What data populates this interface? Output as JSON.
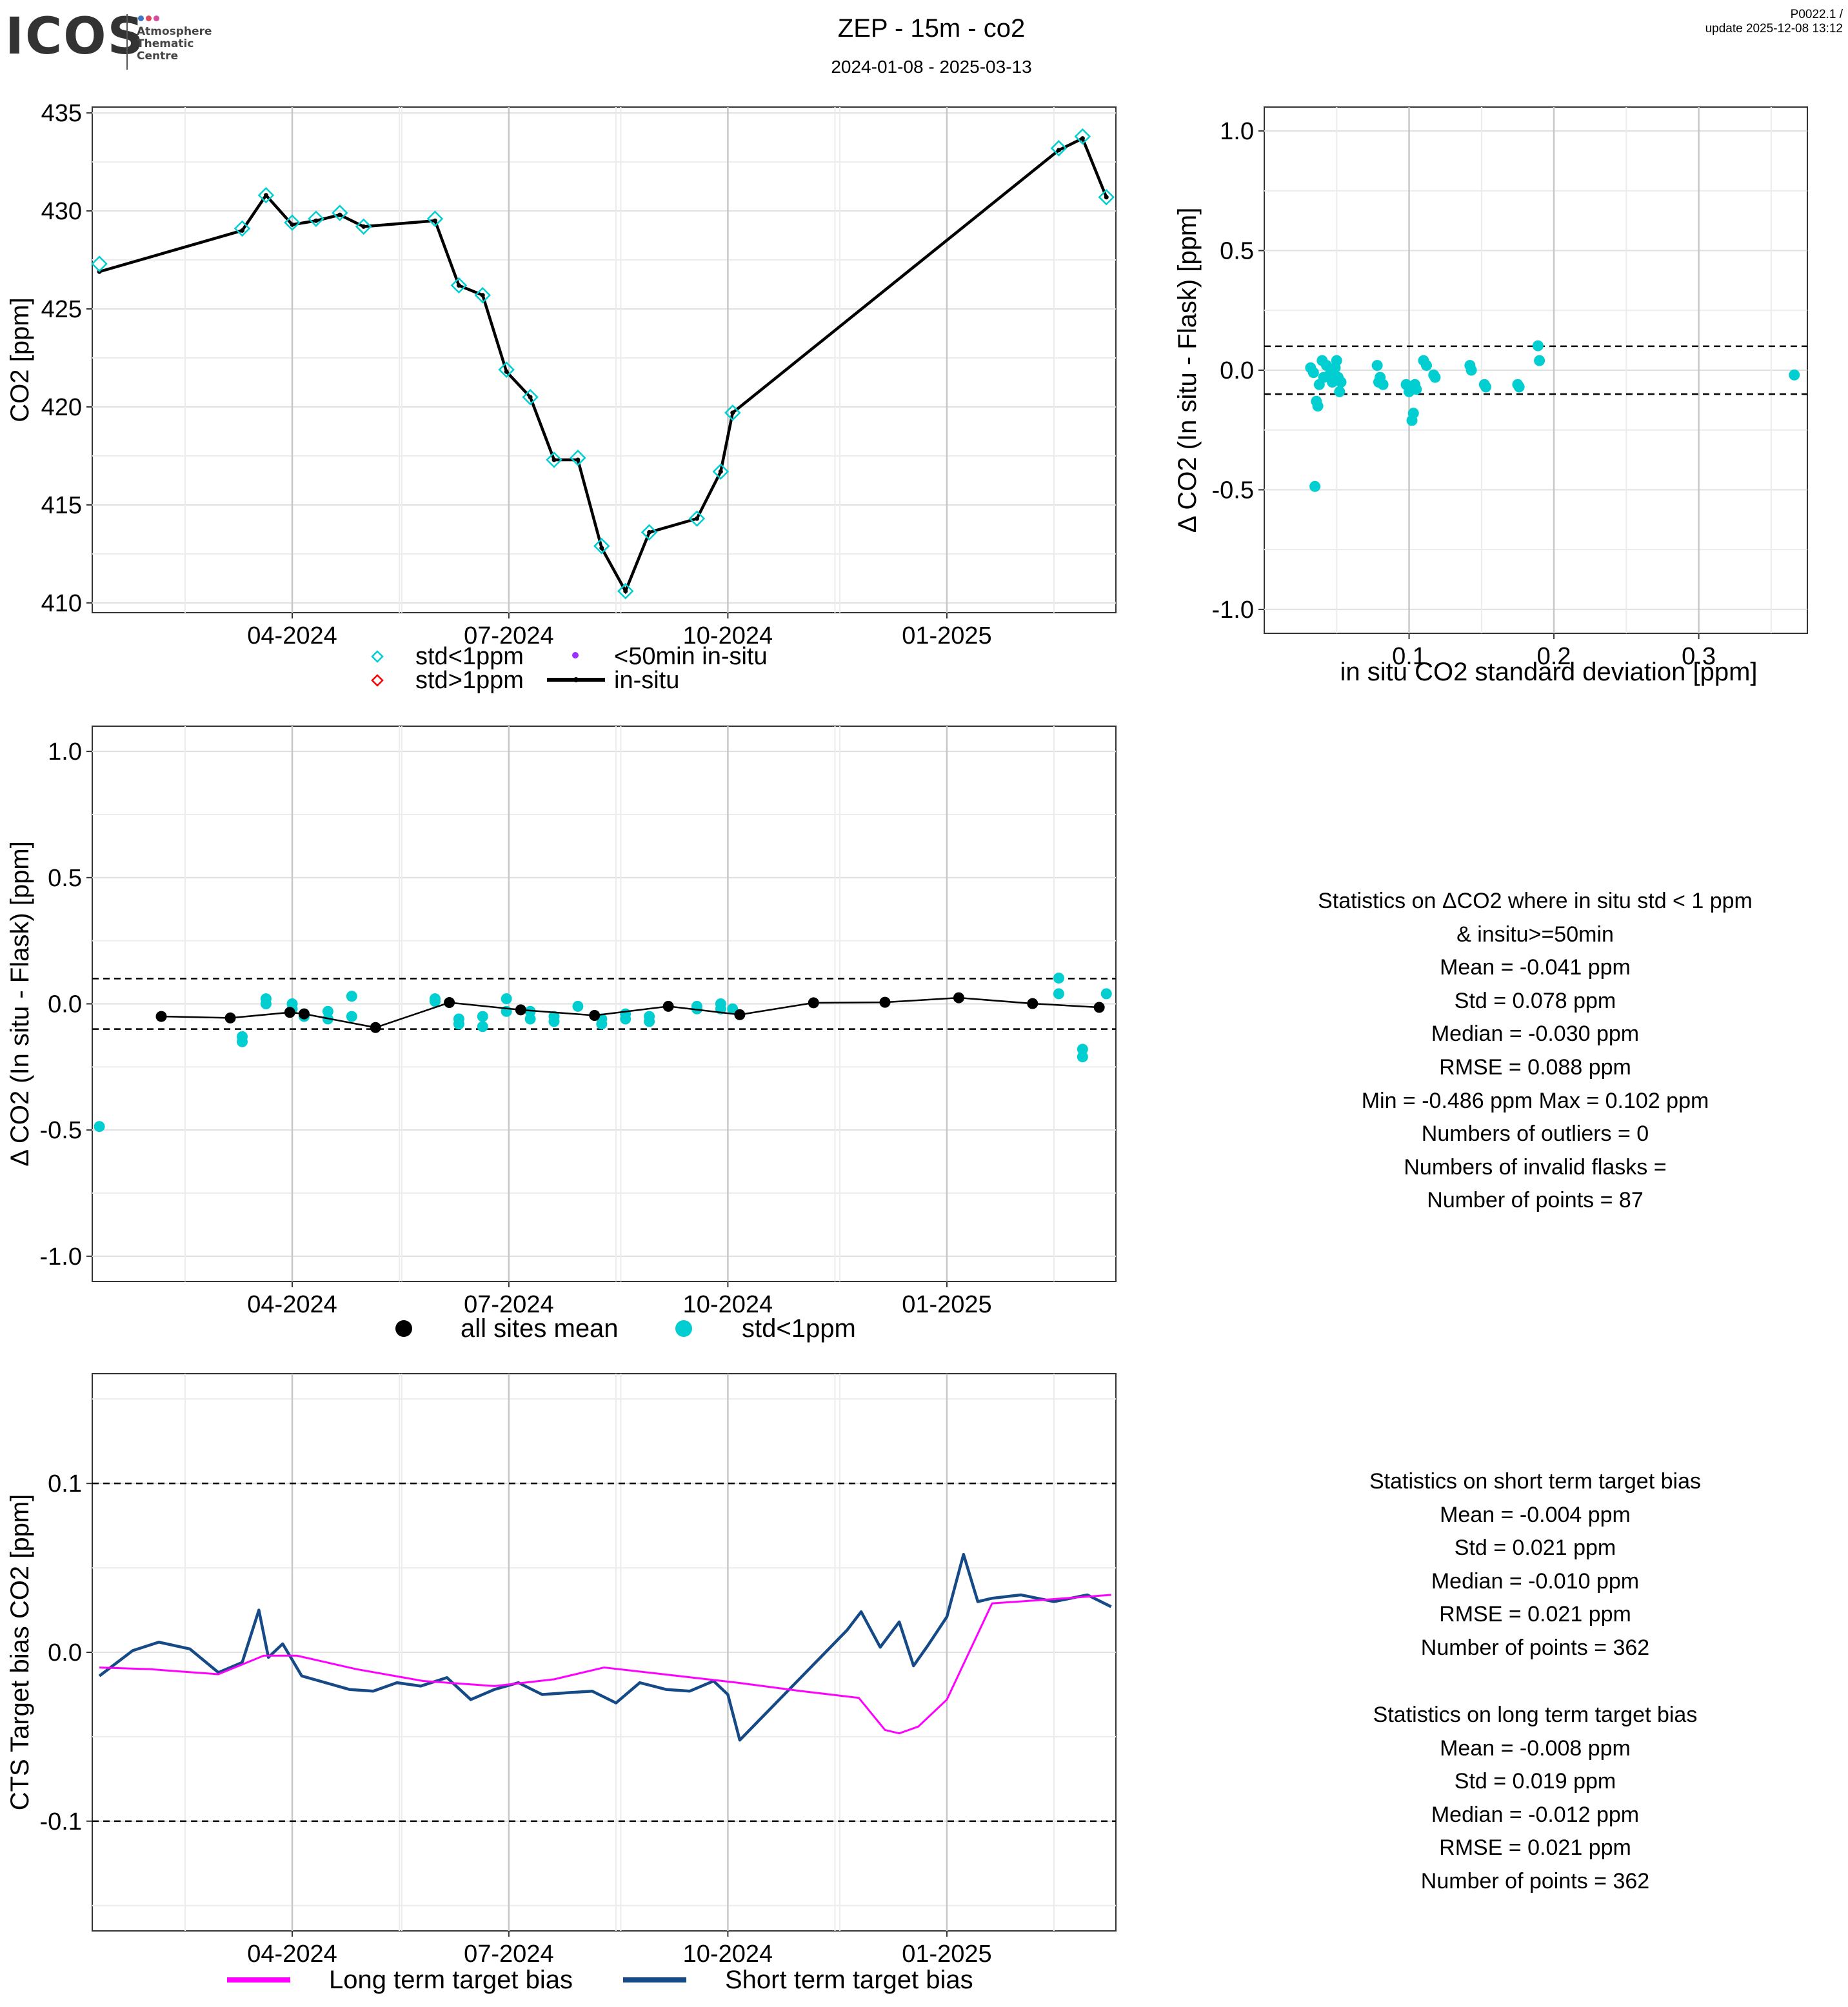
{
  "header": {
    "logo_text": "ICOS",
    "logo_subtitle": [
      "Atmosphere",
      "Thematic",
      "Centre"
    ],
    "title": "ZEP - 15m - co2",
    "date_range": "2024-01-08 - 2025-03-13",
    "product_id": "P0022.1 /",
    "update": "update  2025-12-08 13:12"
  },
  "colors": {
    "cyan": "#00CED1",
    "insitu": "#000000",
    "red": "#FF0000",
    "purple": "#9B30FF",
    "magenta": "#FF00FF",
    "navy": "#154A87"
  },
  "chart_data": [
    {
      "type": "line",
      "name": "co2-timeseries",
      "ylabel": "CO2 [ppm]",
      "ylim": [
        409.5,
        435.3
      ],
      "yticks": [
        410,
        415,
        420,
        425,
        430,
        435
      ],
      "xlim": [
        "2024-01-08",
        "2025-03-13"
      ],
      "xticks": [
        {
          "date": "2024-04-01",
          "label": "04-2024"
        },
        {
          "date": "2024-07-01",
          "label": "07-2024"
        },
        {
          "date": "2024-10-01",
          "label": "10-2024"
        },
        {
          "date": "2025-01-01",
          "label": "01-2025"
        }
      ],
      "legend": [
        {
          "key": "std_lt1",
          "label": "std<1ppm"
        },
        {
          "key": "lt50",
          "label": "<50min in-situ"
        },
        {
          "key": "std_gt1",
          "label": "std>1ppm"
        },
        {
          "key": "insitu",
          "label": "in-situ"
        }
      ],
      "series": [
        {
          "name": "in-situ",
          "x": [
            "2024-01-11",
            "2024-03-11",
            "2024-03-21",
            "2024-04-01",
            "2024-04-11",
            "2024-04-21",
            "2024-05-01",
            "2024-05-31",
            "2024-06-10",
            "2024-06-20",
            "2024-06-30",
            "2024-07-10",
            "2024-07-20",
            "2024-07-30",
            "2024-08-09",
            "2024-08-19",
            "2024-08-29",
            "2024-09-18",
            "2024-09-28",
            "2024-10-03",
            "2025-02-17",
            "2025-02-27",
            "2025-03-09"
          ],
          "values": [
            426.9,
            429.0,
            430.8,
            429.3,
            429.5,
            429.8,
            429.2,
            429.5,
            426.2,
            425.7,
            421.8,
            420.5,
            417.3,
            417.3,
            412.8,
            410.6,
            413.6,
            414.3,
            416.7,
            419.7,
            433.1,
            433.7,
            430.7
          ]
        },
        {
          "name": "std<1ppm",
          "x": [
            "2024-01-11",
            "2024-03-11",
            "2024-03-21",
            "2024-04-01",
            "2024-04-11",
            "2024-04-21",
            "2024-05-01",
            "2024-05-31",
            "2024-06-10",
            "2024-06-20",
            "2024-06-30",
            "2024-07-10",
            "2024-07-20",
            "2024-07-30",
            "2024-08-09",
            "2024-08-19",
            "2024-08-29",
            "2024-09-18",
            "2024-09-28",
            "2024-10-03",
            "2025-02-17",
            "2025-02-27",
            "2025-03-09"
          ],
          "values": [
            427.3,
            429.1,
            430.8,
            429.4,
            429.6,
            429.9,
            429.2,
            429.6,
            426.2,
            425.7,
            421.9,
            420.5,
            417.3,
            417.4,
            412.9,
            410.6,
            413.6,
            414.3,
            416.7,
            419.7,
            433.2,
            433.8,
            430.7
          ]
        }
      ]
    },
    {
      "type": "scatter",
      "name": "delta-vs-std",
      "xlabel": "in situ CO2 standard deviation [ppm]",
      "ylabel": "Δ CO2 (In situ - Flask) [ppm]",
      "xlim": [
        0.0,
        0.375
      ],
      "xticks": [
        0.1,
        0.2,
        0.3
      ],
      "ylim": [
        -1.1,
        1.1
      ],
      "yticks": [
        -1.0,
        -0.5,
        0.0,
        0.5,
        1.0
      ],
      "hlines": [
        0.1,
        -0.1
      ],
      "x": [
        0.032,
        0.034,
        0.035,
        0.036,
        0.037,
        0.038,
        0.04,
        0.041,
        0.043,
        0.045,
        0.047,
        0.049,
        0.05,
        0.051,
        0.052,
        0.053,
        0.078,
        0.079,
        0.08,
        0.082,
        0.098,
        0.1,
        0.102,
        0.103,
        0.104,
        0.105,
        0.11,
        0.112,
        0.117,
        0.118,
        0.142,
        0.143,
        0.152,
        0.153,
        0.175,
        0.176,
        0.189,
        0.19,
        0.366
      ],
      "y": [
        0.01,
        -0.01,
        -0.486,
        -0.13,
        -0.15,
        -0.06,
        0.04,
        -0.03,
        0.02,
        -0.02,
        -0.05,
        0.01,
        0.04,
        -0.03,
        -0.09,
        -0.05,
        0.02,
        -0.05,
        -0.03,
        -0.06,
        -0.06,
        -0.09,
        -0.21,
        -0.18,
        -0.06,
        -0.08,
        0.04,
        0.02,
        -0.02,
        -0.03,
        0.02,
        0.0,
        -0.06,
        -0.07,
        -0.06,
        -0.07,
        0.102,
        0.04,
        -0.02
      ]
    },
    {
      "type": "scatter",
      "name": "delta-timeseries",
      "ylabel": "Δ CO2 (In situ - Flask) [ppm]",
      "ylim": [
        -1.1,
        1.1
      ],
      "yticks": [
        -1.0,
        -0.5,
        0.0,
        0.5,
        1.0
      ],
      "hlines": [
        0.1,
        -0.1
      ],
      "xlim": [
        "2024-01-08",
        "2025-03-13"
      ],
      "xticks": [
        {
          "date": "2024-04-01",
          "label": "04-2024"
        },
        {
          "date": "2024-07-01",
          "label": "07-2024"
        },
        {
          "date": "2024-10-01",
          "label": "10-2024"
        },
        {
          "date": "2025-01-01",
          "label": "01-2025"
        }
      ],
      "legend": [
        {
          "key": "mean",
          "label": "all sites mean"
        },
        {
          "key": "std_lt1",
          "label": "std<1ppm"
        }
      ],
      "mean_series": {
        "x": [
          "2024-02-06",
          "2024-03-06",
          "2024-03-31",
          "2024-04-06",
          "2024-05-06",
          "2024-06-06",
          "2024-07-06",
          "2024-08-06",
          "2024-09-06",
          "2024-10-06",
          "2024-11-06",
          "2024-12-06",
          "2025-01-06",
          "2025-02-06",
          "2025-03-06"
        ],
        "values": [
          -0.05,
          -0.056,
          -0.034,
          -0.04,
          -0.094,
          0.005,
          -0.024,
          -0.046,
          -0.01,
          -0.043,
          0.004,
          0.006,
          0.024,
          0.001,
          -0.014
        ]
      },
      "points": {
        "x": [
          "2024-01-11",
          "2024-03-11",
          "2024-03-11",
          "2024-03-21",
          "2024-03-21",
          "2024-04-01",
          "2024-04-01",
          "2024-04-06",
          "2024-04-06",
          "2024-04-16",
          "2024-04-16",
          "2024-04-26",
          "2024-04-26",
          "2024-05-31",
          "2024-05-31",
          "2024-06-10",
          "2024-06-10",
          "2024-06-20",
          "2024-06-20",
          "2024-06-30",
          "2024-06-30",
          "2024-07-10",
          "2024-07-10",
          "2024-07-20",
          "2024-07-20",
          "2024-07-30",
          "2024-08-09",
          "2024-08-09",
          "2024-08-19",
          "2024-08-19",
          "2024-08-29",
          "2024-08-29",
          "2024-09-18",
          "2024-09-18",
          "2024-09-28",
          "2024-09-28",
          "2024-10-03",
          "2025-02-17",
          "2025-02-17",
          "2025-02-27",
          "2025-02-27",
          "2025-03-09"
        ],
        "values": [
          -0.486,
          -0.13,
          -0.15,
          0.02,
          0.0,
          0.0,
          -0.02,
          -0.04,
          -0.05,
          -0.03,
          -0.06,
          0.03,
          -0.05,
          0.01,
          0.02,
          -0.06,
          -0.08,
          -0.05,
          -0.09,
          0.02,
          -0.03,
          -0.03,
          -0.06,
          -0.05,
          -0.07,
          -0.01,
          -0.06,
          -0.08,
          -0.06,
          -0.04,
          -0.05,
          -0.07,
          -0.02,
          -0.01,
          0.0,
          -0.02,
          -0.02,
          0.102,
          0.04,
          -0.21,
          -0.18,
          0.04
        ]
      }
    },
    {
      "type": "line",
      "name": "target-bias",
      "ylabel": "CTS Target bias CO2 [ppm]",
      "ylim": [
        -0.165,
        0.165
      ],
      "yticks": [
        -0.1,
        0.0,
        0.1
      ],
      "hlines": [
        0.1,
        -0.1
      ],
      "xlim": [
        "2024-01-08",
        "2025-03-13"
      ],
      "xticks": [
        {
          "date": "2024-04-01",
          "label": "04-2024"
        },
        {
          "date": "2024-07-01",
          "label": "07-2024"
        },
        {
          "date": "2024-10-01",
          "label": "10-2024"
        },
        {
          "date": "2025-01-01",
          "label": "01-2025"
        }
      ],
      "legend": [
        {
          "key": "long",
          "label": "Long term target bias"
        },
        {
          "key": "short",
          "label": "Short term target bias"
        }
      ],
      "long_term": {
        "x": [
          "2024-01-11",
          "2024-02-01",
          "2024-03-01",
          "2024-03-20",
          "2024-04-03",
          "2024-04-28",
          "2024-05-26",
          "2024-06-25",
          "2024-07-20",
          "2024-08-10",
          "2024-09-10",
          "2024-10-05",
          "2024-11-01",
          "2024-11-25",
          "2024-12-06",
          "2024-12-12",
          "2024-12-20",
          "2025-01-01",
          "2025-01-20",
          "2025-02-10",
          "2025-03-11"
        ],
        "values": [
          -0.009,
          -0.01,
          -0.013,
          -0.002,
          -0.002,
          -0.01,
          -0.017,
          -0.02,
          -0.016,
          -0.009,
          -0.014,
          -0.018,
          -0.023,
          -0.027,
          -0.046,
          -0.048,
          -0.044,
          -0.028,
          0.029,
          0.031,
          0.034
        ]
      },
      "short_term": {
        "x": [
          "2024-01-11",
          "2024-01-25",
          "2024-02-05",
          "2024-02-18",
          "2024-03-01",
          "2024-03-11",
          "2024-03-18",
          "2024-03-22",
          "2024-03-28",
          "2024-04-05",
          "2024-04-15",
          "2024-04-25",
          "2024-05-05",
          "2024-05-15",
          "2024-05-25",
          "2024-06-05",
          "2024-06-15",
          "2024-06-25",
          "2024-07-05",
          "2024-07-15",
          "2024-07-25",
          "2024-08-05",
          "2024-08-15",
          "2024-08-25",
          "2024-09-05",
          "2024-09-15",
          "2024-09-25",
          "2024-10-01",
          "2024-10-06",
          "2024-11-20",
          "2024-11-26",
          "2024-12-04",
          "2024-12-12",
          "2024-12-18",
          "2024-12-24",
          "2025-01-01",
          "2025-01-08",
          "2025-01-14",
          "2025-01-20",
          "2025-02-01",
          "2025-02-15",
          "2025-03-01",
          "2025-03-11"
        ],
        "values": [
          -0.014,
          0.001,
          0.006,
          0.002,
          -0.012,
          -0.006,
          0.025,
          -0.003,
          0.005,
          -0.014,
          -0.018,
          -0.022,
          -0.023,
          -0.018,
          -0.02,
          -0.015,
          -0.028,
          -0.022,
          -0.018,
          -0.025,
          -0.024,
          -0.023,
          -0.03,
          -0.018,
          -0.022,
          -0.023,
          -0.017,
          -0.025,
          -0.052,
          0.013,
          0.024,
          0.003,
          0.018,
          -0.008,
          0.004,
          0.021,
          0.058,
          0.03,
          0.032,
          0.034,
          0.03,
          0.034,
          0.027
        ]
      }
    }
  ],
  "stats_delta": {
    "lines": [
      "Statistics on ΔCO2 where in situ std < 1 ppm",
      "& insitu>=50min",
      "Mean =  -0.041 ppm",
      "Std =  0.078 ppm",
      "Median =  -0.030 ppm",
      "RMSE =  0.088 ppm",
      "Min =  -0.486 ppm Max =  0.102 ppm",
      "Numbers of outliers =  0",
      "Numbers of invalid flasks =",
      "Number of points =  87"
    ]
  },
  "stats_short": {
    "lines": [
      "Statistics on short term target bias",
      "Mean =  -0.004 ppm",
      "Std =  0.021 ppm",
      "Median =  -0.010 ppm",
      "RMSE =  0.021 ppm",
      "Number of points =  362"
    ]
  },
  "stats_long": {
    "lines": [
      "Statistics on long term target bias",
      "Mean =  -0.008 ppm",
      "Std =  0.019 ppm",
      "Median =  -0.012 ppm",
      "RMSE =  0.021 ppm",
      "Number of points =  362"
    ]
  }
}
